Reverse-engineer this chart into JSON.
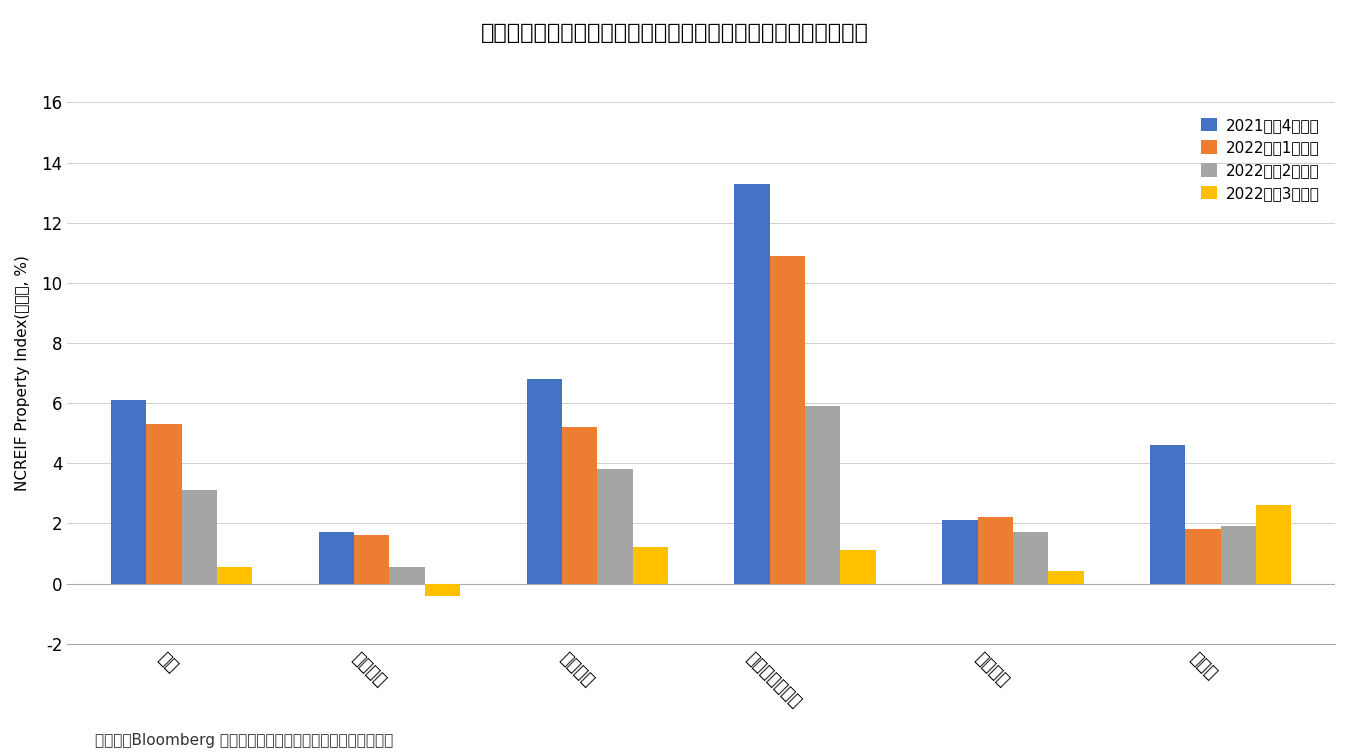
{
  "title": "図表３：米国の不動産セクター毎のトータルリターン（前期比）",
  "ylabel": "NCREIF Property Index(前期比, %)",
  "categories": [
    "全体",
    "オフィス",
    "賃貸住宅",
    "物流・産業施設",
    "商業施設",
    "ホテル"
  ],
  "legend_labels": [
    "2021年第4四半期",
    "2022年第1四半期",
    "2022年第2四半期",
    "2022年第3四半期"
  ],
  "series": {
    "2021年第4四半期": [
      6.1,
      1.7,
      6.8,
      13.3,
      2.1,
      4.6
    ],
    "2022年第1四半期": [
      5.3,
      1.6,
      5.2,
      10.9,
      2.2,
      1.8
    ],
    "2022年第2四半期": [
      3.1,
      0.55,
      3.8,
      5.9,
      1.7,
      1.9
    ],
    "2022年第3四半期": [
      0.55,
      -0.4,
      1.2,
      1.1,
      0.4,
      2.6
    ]
  },
  "colors": [
    "#4472C4",
    "#ED7D31",
    "#A5A5A5",
    "#FFC000"
  ],
  "ylim": [
    -2,
    16
  ],
  "yticks": [
    -2,
    0,
    2,
    4,
    6,
    8,
    10,
    12,
    14,
    16
  ],
  "footnote": "（出所）Bloomberg のデータをもとにニッセイ基礎研究所作成",
  "background_color": "#FFFFFF"
}
